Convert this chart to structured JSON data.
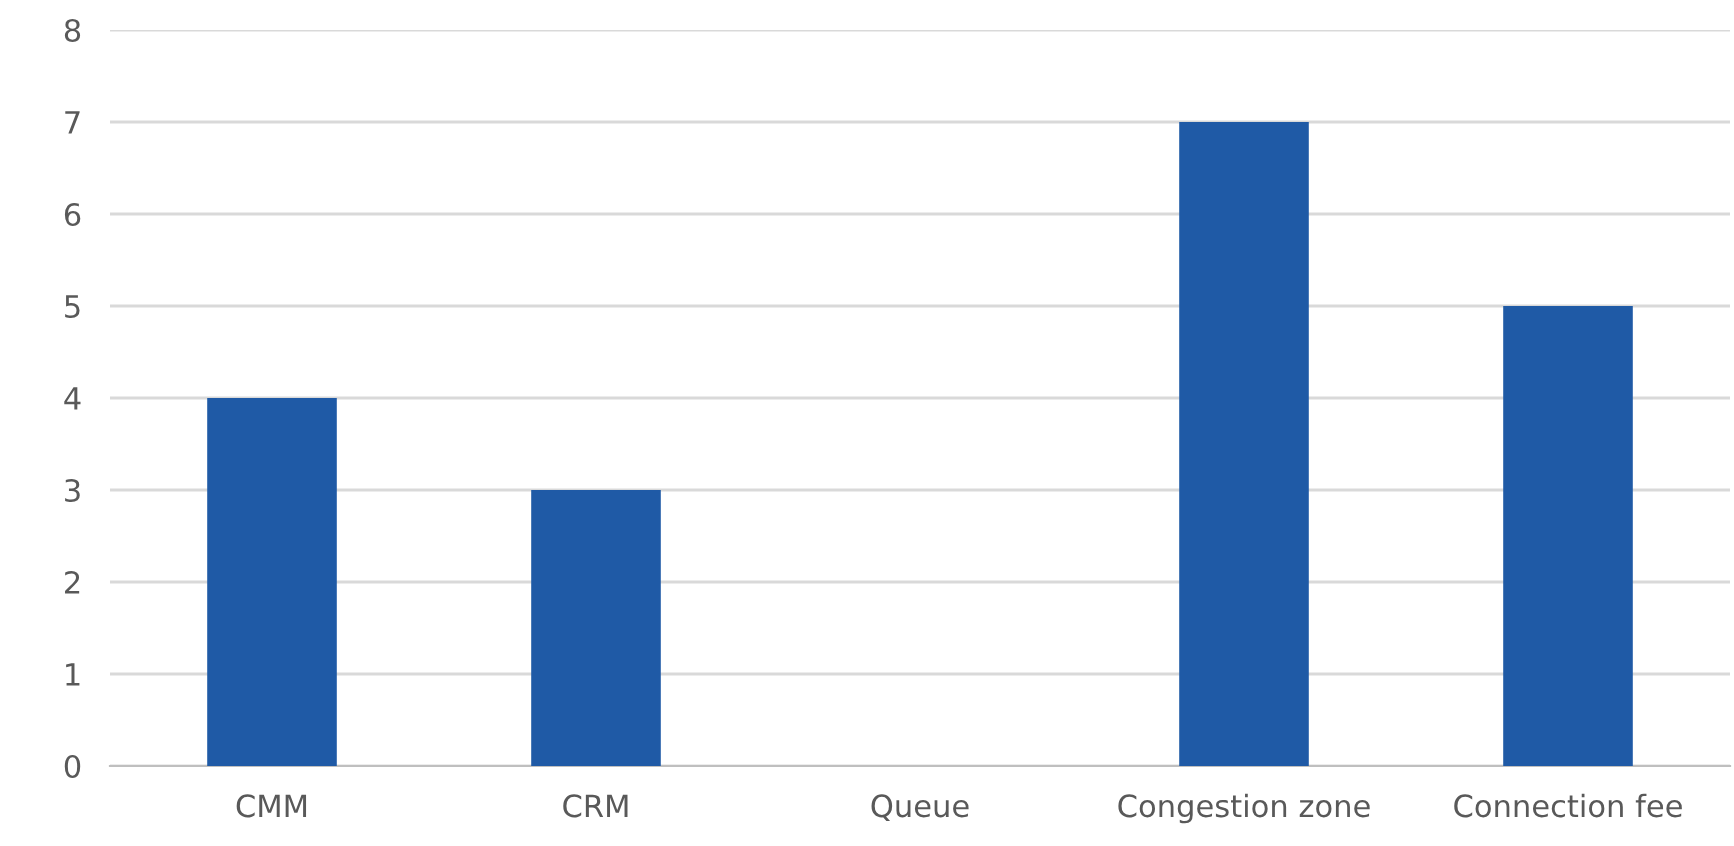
{
  "chart_data": {
    "type": "bar",
    "categories": [
      "CMM",
      "CRM",
      "Queue",
      "Congestion zone",
      "Connection fee"
    ],
    "values": [
      4,
      3,
      0,
      7,
      5
    ],
    "color": "#1f5aa6",
    "ylim": [
      0,
      8
    ],
    "yticks": [
      0,
      1,
      2,
      3,
      4,
      5,
      6,
      7,
      8
    ],
    "grid": "y",
    "legend": false
  }
}
